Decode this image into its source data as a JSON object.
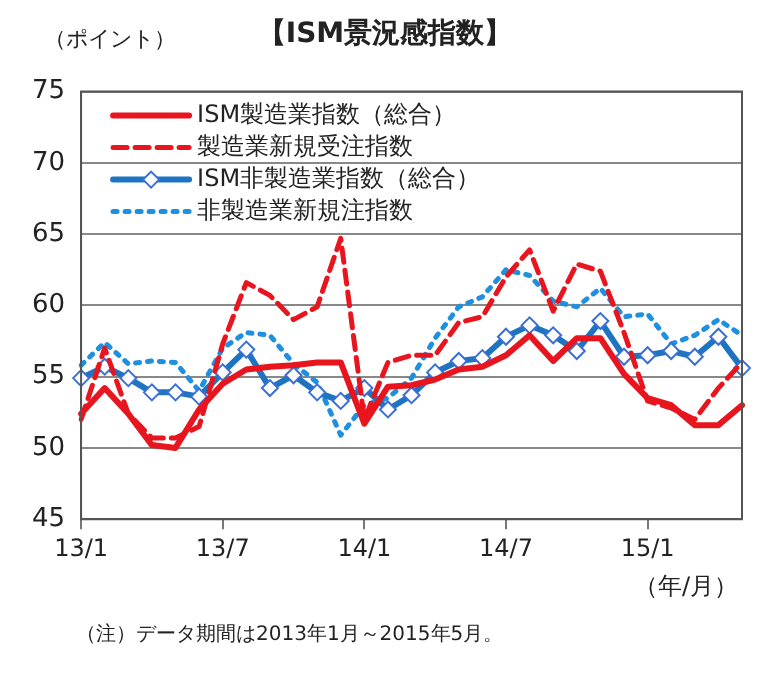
{
  "chart_data": {
    "type": "line",
    "title": "【ISM景況感指数】",
    "ylabel": "（ポイント）",
    "xlabel": "（年/月）",
    "categories": [
      "13/1",
      null,
      null,
      null,
      null,
      null,
      "13/7",
      null,
      null,
      null,
      null,
      null,
      "14/1",
      null,
      null,
      null,
      null,
      null,
      "14/7",
      null,
      null,
      null,
      null,
      null,
      "15/1",
      null,
      null,
      null,
      null
    ],
    "series": [
      {
        "name": "ISM製造業指数（総合）",
        "color": "#e8141e",
        "line_style": "solid",
        "marker": "none",
        "values": [
          52.4,
          54.2,
          52.4,
          50.2,
          50.0,
          52.7,
          54.5,
          55.5,
          55.7,
          55.8,
          56.0,
          56.0,
          51.7,
          54.3,
          54.4,
          54.8,
          55.5,
          55.7,
          56.5,
          57.9,
          56.1,
          57.7,
          57.7,
          55.2,
          53.5,
          53.0,
          51.6,
          51.6,
          53.0
        ]
      },
      {
        "name": "製造業新規受注指数",
        "color": "#e8141e",
        "line_style": "dashed",
        "marker": "none",
        "values": [
          52.0,
          57.0,
          52.4,
          50.7,
          50.7,
          51.5,
          57.3,
          61.6,
          60.7,
          59.0,
          59.9,
          64.7,
          52.0,
          56.0,
          56.5,
          56.5,
          58.8,
          59.2,
          62.0,
          63.9,
          59.6,
          62.9,
          62.4,
          58.1,
          53.3,
          52.8,
          52.0,
          54.2,
          56.0
        ]
      },
      {
        "name": "ISM非製造業指数（総合）",
        "color": "#1f74c2",
        "line_style": "solid",
        "marker": "diamond",
        "values": [
          54.9,
          55.7,
          54.9,
          53.9,
          53.9,
          53.6,
          55.3,
          56.9,
          54.2,
          55.1,
          53.9,
          53.3,
          54.2,
          52.7,
          53.7,
          55.3,
          56.1,
          56.3,
          57.8,
          58.6,
          57.9,
          56.8,
          58.9,
          56.4,
          56.5,
          56.8,
          56.4,
          57.8,
          55.6
        ]
      },
      {
        "name": "非製造業新規注指数",
        "color": "#1f8fdf",
        "line_style": "dotted",
        "marker": "none",
        "values": [
          55.8,
          57.4,
          55.9,
          56.1,
          56.0,
          54.0,
          57.0,
          58.1,
          57.9,
          55.9,
          54.6,
          50.9,
          53.0,
          53.5,
          54.9,
          57.7,
          59.9,
          60.6,
          62.5,
          62.1,
          60.3,
          59.9,
          61.2,
          59.2,
          59.4,
          57.3,
          57.9,
          59.0,
          57.9
        ]
      }
    ],
    "ylim": [
      45,
      75
    ],
    "yticks": [
      45,
      50,
      55,
      60,
      65,
      70,
      75
    ],
    "grid": "y",
    "legend": "top left",
    "annotations": [
      "（注）データ期間は2013年1月～2015年5月。"
    ]
  }
}
